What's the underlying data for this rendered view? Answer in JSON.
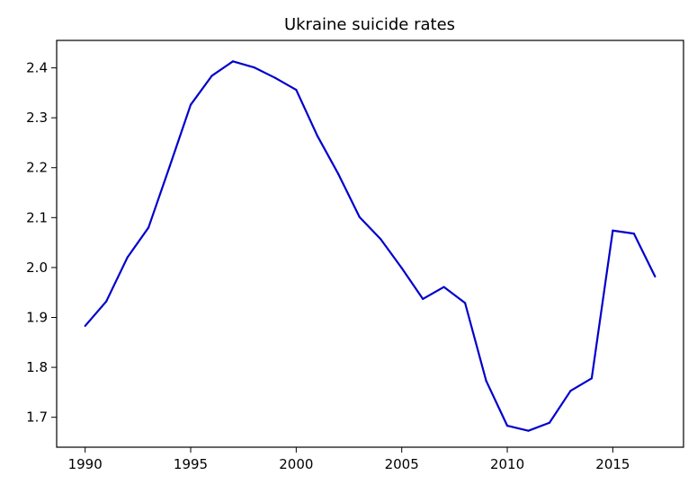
{
  "chart_data": {
    "type": "line",
    "title": "Ukraine suicide rates",
    "xlabel": "",
    "ylabel": "",
    "xlim": [
      1988.65,
      2018.35
    ],
    "ylim": [
      1.64,
      2.455
    ],
    "xticks": [
      1990,
      1995,
      2000,
      2005,
      2010,
      2015
    ],
    "yticks": [
      1.7,
      1.8,
      1.9,
      2.0,
      2.1,
      2.2,
      2.3,
      2.4
    ],
    "ytick_labels": [
      "1.7",
      "1.8",
      "1.9",
      "2.0",
      "2.1",
      "2.2",
      "2.3",
      "2.4"
    ],
    "grid": false,
    "line_color": "#0000cc",
    "series": [
      {
        "x": [
          1990,
          1991,
          1992,
          1993,
          1994,
          1995,
          1996,
          1997,
          1998,
          1999,
          2000,
          2001,
          2002,
          2003,
          2004,
          2005,
          2006,
          2007,
          2008,
          2009,
          2010,
          2011,
          2012,
          2013,
          2014,
          2015,
          2016,
          2017
        ],
        "y": [
          1.883,
          1.932,
          2.02,
          2.08,
          2.202,
          2.326,
          2.384,
          2.413,
          2.401,
          2.38,
          2.356,
          2.264,
          2.187,
          2.101,
          2.057,
          1.999,
          1.937,
          1.961,
          1.929,
          1.773,
          1.683,
          1.673,
          1.689,
          1.753,
          1.778,
          2.074,
          2.068,
          1.982
        ]
      }
    ]
  }
}
